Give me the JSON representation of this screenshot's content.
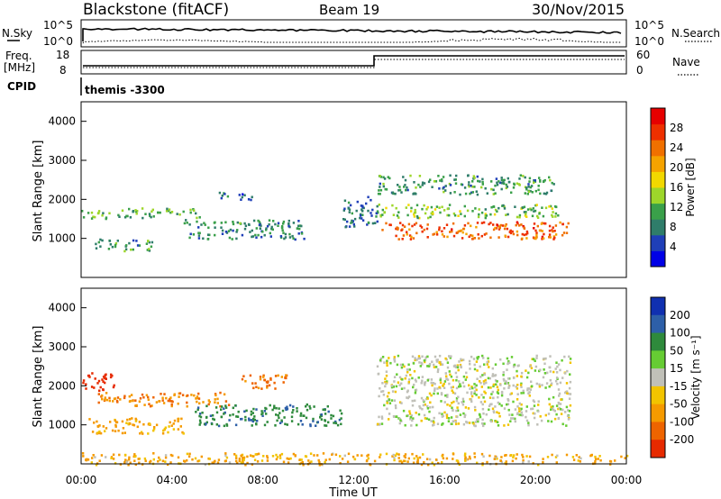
{
  "header": {
    "station": "Blackstone (fitACF)",
    "beam": "Beam 19",
    "date": "30/Nov/2015"
  },
  "top_panels": {
    "nsky_label": "N.Sky",
    "nsearch_label": "N.Search",
    "noise_tick_top": "10^5",
    "noise_tick_bottom": "10^0",
    "freq_label_1": "Freq.",
    "freq_label_2": "[MHz]",
    "freq_tick_top": "18",
    "freq_tick_bottom": "8",
    "nave_label": "Nave",
    "nave_tick_top": "60",
    "nave_tick_bottom": "0",
    "cpid_label": "CPID",
    "cpid_value": "themis -3300"
  },
  "colors": {
    "power_scale": [
      "#0000e6",
      "#1f3fb8",
      "#2f7d6a",
      "#3aa04a",
      "#9dd62a",
      "#f2d800",
      "#f5a300",
      "#f07000",
      "#ee3000",
      "#e60000"
    ],
    "velocity_scale": [
      "#1030b0",
      "#2d5fa8",
      "#2e8a3c",
      "#66cc33",
      "#c0c0b8",
      "#f2c400",
      "#f59a00",
      "#ee6400",
      "#e62a00"
    ]
  },
  "chart_data": [
    {
      "type": "heatmap",
      "name": "power",
      "ylabel": "Slant Range [km]",
      "yticks": [
        "1000",
        "2000",
        "3000",
        "4000"
      ],
      "ylim": [
        0,
        4500
      ],
      "xlim_hours": [
        0,
        24
      ],
      "colorbar_label": "Power [dB]",
      "colorbar_ticks": [
        "4",
        "8",
        "12",
        "16",
        "20",
        "24",
        "28"
      ],
      "colorbar_range": [
        0,
        32
      ],
      "bands": [
        {
          "t0": 0.0,
          "t1": 1.3,
          "r0": 1500,
          "r1": 1750,
          "level": 12
        },
        {
          "t0": 0.6,
          "t1": 3.2,
          "r0": 700,
          "r1": 1000,
          "level": 10
        },
        {
          "t0": 1.5,
          "t1": 5.2,
          "r0": 1550,
          "r1": 1800,
          "level": 11
        },
        {
          "t0": 4.5,
          "t1": 9.8,
          "r0": 1000,
          "r1": 1500,
          "level": 9
        },
        {
          "t0": 6.0,
          "t1": 7.5,
          "r0": 2000,
          "r1": 2200,
          "level": 7
        },
        {
          "t0": 13.0,
          "t1": 20.8,
          "r0": 2150,
          "r1": 2650,
          "level": 10
        },
        {
          "t0": 13.0,
          "t1": 21.0,
          "r0": 1550,
          "r1": 1900,
          "level": 13
        },
        {
          "t0": 13.2,
          "t1": 21.5,
          "r0": 1000,
          "r1": 1450,
          "level": 25
        },
        {
          "t0": 11.5,
          "t1": 13.0,
          "r0": 1300,
          "r1": 2100,
          "level": 7
        }
      ]
    },
    {
      "type": "heatmap",
      "name": "velocity",
      "ylabel": "Slant Range [km]",
      "yticks": [
        "1000",
        "2000",
        "3000",
        "4000"
      ],
      "ylim": [
        0,
        4500
      ],
      "xlim_hours": [
        0,
        24
      ],
      "xlabel": "Time UT",
      "xticks": [
        "00:00",
        "04:00",
        "08:00",
        "12:00",
        "16:00",
        "20:00",
        "00:00"
      ],
      "colorbar_label": "Velocity [m s⁻¹]",
      "colorbar_ticks": [
        "200",
        "100",
        "50",
        "15",
        "-15",
        "-50",
        "-100",
        "-200"
      ],
      "bands": [
        {
          "t0": 0.0,
          "t1": 1.5,
          "r0": 1900,
          "r1": 2350,
          "vel": -180
        },
        {
          "t0": 0.5,
          "t1": 6.5,
          "r0": 1500,
          "r1": 1850,
          "vel": -70
        },
        {
          "t0": 0.3,
          "t1": 4.5,
          "r0": 800,
          "r1": 1200,
          "vel": -45
        },
        {
          "t0": 5.0,
          "t1": 11.5,
          "r0": 1000,
          "r1": 1550,
          "vel": 60
        },
        {
          "t0": 7.0,
          "t1": 9.2,
          "r0": 1950,
          "r1": 2300,
          "vel": -90
        },
        {
          "t0": 13.0,
          "t1": 21.5,
          "r0": 1000,
          "r1": 2800,
          "vel": 0
        },
        {
          "t0": 0.0,
          "t1": 24.0,
          "r0": 0,
          "r1": 300,
          "vel": -40
        }
      ]
    }
  ]
}
